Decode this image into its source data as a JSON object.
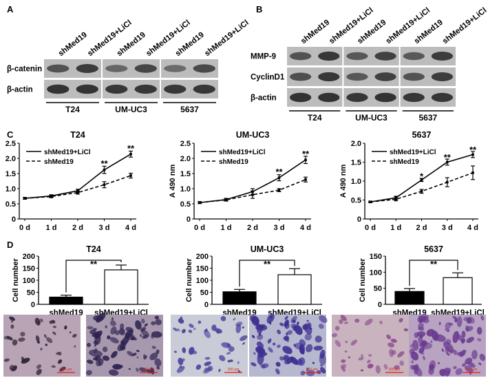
{
  "panels": {
    "A": {
      "letter": "A",
      "lane_labels": [
        "shMed19",
        "shMed19+LiCl",
        "shMed19",
        "shMed19+LiCl",
        "shMed19",
        "shMed19+LiCl"
      ],
      "row_labels": [
        "β-catenin",
        "β-actin"
      ],
      "groups": [
        "T24",
        "UM-UC3",
        "5637"
      ],
      "row_intensities": [
        [
          0.5,
          0.75,
          0.3,
          0.65,
          0.25,
          0.6
        ],
        [
          0.85,
          0.85,
          0.8,
          0.8,
          0.8,
          0.8
        ]
      ]
    },
    "B": {
      "letter": "B",
      "lane_labels": [
        "shMed19",
        "shMed19+LiCl",
        "shMed19",
        "shMed19+LiCl",
        "shMed19",
        "shMed19+LiCl"
      ],
      "row_labels": [
        "MMP-9",
        "CyclinD1",
        "β-actin"
      ],
      "groups": [
        "T24",
        "UM-UC3",
        "5637"
      ],
      "row_intensities": [
        [
          0.5,
          0.8,
          0.45,
          0.7,
          0.45,
          0.75
        ],
        [
          0.55,
          0.8,
          0.45,
          0.7,
          0.5,
          0.75
        ],
        [
          0.85,
          0.85,
          0.8,
          0.85,
          0.8,
          0.8
        ]
      ]
    },
    "C": {
      "letter": "C"
    },
    "D": {
      "letter": "D"
    }
  },
  "chart_data": [
    {
      "type": "line",
      "panel": "C",
      "title": "T24",
      "ylabel": "A 490 nm",
      "xlabel": "",
      "x": [
        "0 d",
        "1 d",
        "2 d",
        "3 d",
        "4 d"
      ],
      "ylim": [
        0,
        2.5
      ],
      "yticks": [
        "0",
        "0.5",
        "1.0",
        "1.5",
        "2.0",
        "2.5"
      ],
      "series": [
        {
          "name": "shMed19+LiCl",
          "style": "solid",
          "values": [
            0.68,
            0.76,
            0.93,
            1.62,
            2.14
          ],
          "errors": [
            0.03,
            0.04,
            0.05,
            0.12,
            0.1
          ]
        },
        {
          "name": "shMed19",
          "style": "dashed",
          "values": [
            0.68,
            0.74,
            0.87,
            1.13,
            1.43
          ],
          "errors": [
            0.03,
            0.04,
            0.05,
            0.1,
            0.08
          ]
        }
      ],
      "annotations": [
        {
          "x": 3,
          "y": 1.82,
          "text": "**"
        },
        {
          "x": 4,
          "y": 2.32,
          "text": "**"
        }
      ],
      "legend": "top-left"
    },
    {
      "type": "line",
      "panel": "C",
      "title": "UM-UC3",
      "ylabel": "A 490 nm",
      "xlabel": "",
      "x": [
        "0 d",
        "1 d",
        "2 d",
        "3 d",
        "4 d"
      ],
      "ylim": [
        0,
        2.5
      ],
      "yticks": [
        "0",
        "0.5",
        "1.0",
        "1.5",
        "2.0",
        "2.5"
      ],
      "series": [
        {
          "name": "shMed19+LiCl",
          "style": "solid",
          "values": [
            0.54,
            0.64,
            0.9,
            1.36,
            1.95
          ],
          "errors": [
            0.03,
            0.04,
            0.1,
            0.1,
            0.12
          ]
        },
        {
          "name": "shMed19",
          "style": "dashed",
          "values": [
            0.54,
            0.63,
            0.8,
            0.95,
            1.3
          ],
          "errors": [
            0.03,
            0.04,
            0.12,
            0.05,
            0.08
          ]
        }
      ],
      "annotations": [
        {
          "x": 3,
          "y": 1.55,
          "text": "**"
        },
        {
          "x": 4,
          "y": 2.14,
          "text": "**"
        }
      ],
      "legend": "top-left"
    },
    {
      "type": "line",
      "panel": "C",
      "title": "5637",
      "ylabel": "A 490 nm",
      "xlabel": "",
      "x": [
        "0 d",
        "1 d",
        "2 d",
        "3 d",
        "4 d"
      ],
      "ylim": [
        0,
        2.0
      ],
      "yticks": [
        "0",
        "0.5",
        "1.0",
        "1.5",
        "2.0"
      ],
      "series": [
        {
          "name": "shMed19+LiCl",
          "style": "solid",
          "values": [
            0.45,
            0.56,
            1.03,
            1.5,
            1.7
          ],
          "errors": [
            0.02,
            0.04,
            0.04,
            0.08,
            0.08
          ]
        },
        {
          "name": "shMed19",
          "style": "dashed",
          "values": [
            0.45,
            0.52,
            0.73,
            0.97,
            1.22
          ],
          "errors": [
            0.02,
            0.04,
            0.05,
            0.12,
            0.18
          ]
        }
      ],
      "annotations": [
        {
          "x": 2,
          "y": 1.12,
          "text": "*"
        },
        {
          "x": 3,
          "y": 1.62,
          "text": "**"
        },
        {
          "x": 4,
          "y": 1.82,
          "text": "**"
        }
      ],
      "legend": "top-left"
    },
    {
      "type": "bar",
      "panel": "D",
      "title": "T24",
      "ylabel": "Cell number",
      "categories": [
        "shMed19",
        "shMed19+LiCl"
      ],
      "values": [
        30,
        143
      ],
      "errors": [
        8,
        20
      ],
      "fills": [
        "#000000",
        "#ffffff"
      ],
      "ylim": [
        0,
        200
      ],
      "yticks": [
        "0",
        "50",
        "100",
        "150",
        "200"
      ],
      "significance": "**"
    },
    {
      "type": "bar",
      "panel": "D",
      "title": "UM-UC3",
      "ylabel": "Cell number",
      "categories": [
        "shMed19",
        "shMed19+LiCl"
      ],
      "values": [
        52,
        123
      ],
      "errors": [
        10,
        25
      ],
      "fills": [
        "#000000",
        "#ffffff"
      ],
      "ylim": [
        0,
        200
      ],
      "yticks": [
        "0",
        "50",
        "100",
        "150",
        "200"
      ],
      "significance": "**"
    },
    {
      "type": "bar",
      "panel": "D",
      "title": "5637",
      "ylabel": "Cell number",
      "categories": [
        "shMed19",
        "shMed19+LiCl"
      ],
      "values": [
        40,
        83
      ],
      "errors": [
        9,
        15
      ],
      "fills": [
        "#000000",
        "#ffffff"
      ],
      "ylim": [
        0,
        150
      ],
      "yticks": [
        "0",
        "50",
        "100",
        "150"
      ],
      "significance": "**"
    }
  ],
  "micrographs": [
    {
      "scale": "200 μm",
      "bg": "#b9a4b6",
      "cell": "#2a1f33",
      "density": 0.25
    },
    {
      "scale": "200 μm",
      "bg": "#a898ae",
      "cell": "#2d2250",
      "density": 0.8
    },
    {
      "scale": "200 μm",
      "bg": "#c9ccd6",
      "cell": "#4b3c9c",
      "density": 0.35
    },
    {
      "scale": "200 μm",
      "bg": "#b6b8cf",
      "cell": "#3d2d90",
      "density": 0.85
    },
    {
      "scale": "200 μm",
      "bg": "#c9b3bf",
      "cell": "#8a4b8e",
      "density": 0.2
    },
    {
      "scale": "200 μm",
      "bg": "#b9a3c3",
      "cell": "#6a3c8f",
      "density": 0.85
    }
  ]
}
